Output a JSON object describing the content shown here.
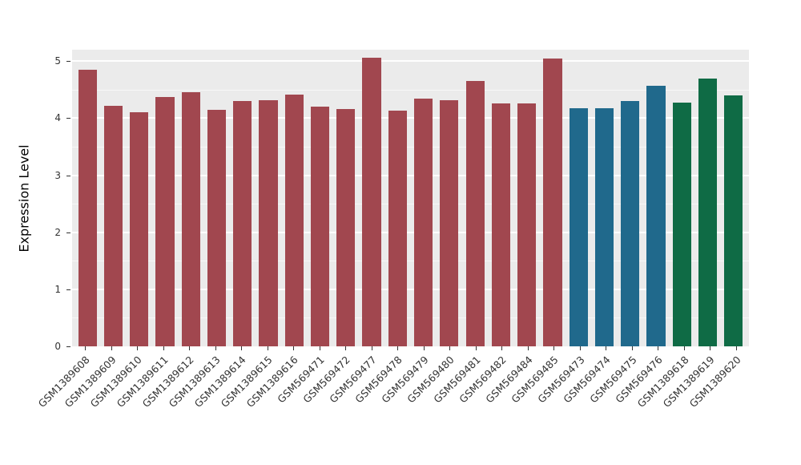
{
  "chart_data": {
    "type": "bar",
    "title": "",
    "xlabel": "",
    "ylabel": "Expression Level",
    "ylim": [
      0,
      5.2
    ],
    "yticks": [
      0,
      1,
      2,
      3,
      4,
      5
    ],
    "grid": "on",
    "legend": "none",
    "panel_bg": "#EBEBEB",
    "grid_color": "#FFFFFF",
    "categories": [
      "GSM1389608",
      "GSM1389609",
      "GSM1389610",
      "GSM1389611",
      "GSM1389612",
      "GSM1389613",
      "GSM1389614",
      "GSM1389615",
      "GSM1389616",
      "GSM569471",
      "GSM569472",
      "GSM569477",
      "GSM569478",
      "GSM569479",
      "GSM569480",
      "GSM569481",
      "GSM569482",
      "GSM569484",
      "GSM569485",
      "GSM569473",
      "GSM569474",
      "GSM569475",
      "GSM569476",
      "GSM1389618",
      "GSM1389619",
      "GSM1389620"
    ],
    "values": [
      4.85,
      4.22,
      4.1,
      4.37,
      4.46,
      4.14,
      4.3,
      4.32,
      4.42,
      4.2,
      4.16,
      5.06,
      4.13,
      4.34,
      4.32,
      4.65,
      4.26,
      4.26,
      5.04,
      4.18,
      4.17,
      4.3,
      4.57,
      4.27,
      4.69,
      4.4
    ],
    "groups": [
      "maroon",
      "maroon",
      "maroon",
      "maroon",
      "maroon",
      "maroon",
      "maroon",
      "maroon",
      "maroon",
      "maroon",
      "maroon",
      "maroon",
      "maroon",
      "maroon",
      "maroon",
      "maroon",
      "maroon",
      "maroon",
      "maroon",
      "teal",
      "teal",
      "teal",
      "teal",
      "green",
      "green",
      "green"
    ],
    "group_colors": {
      "maroon": "#A1474F",
      "teal": "#20698C",
      "green": "#0F6B45"
    }
  }
}
